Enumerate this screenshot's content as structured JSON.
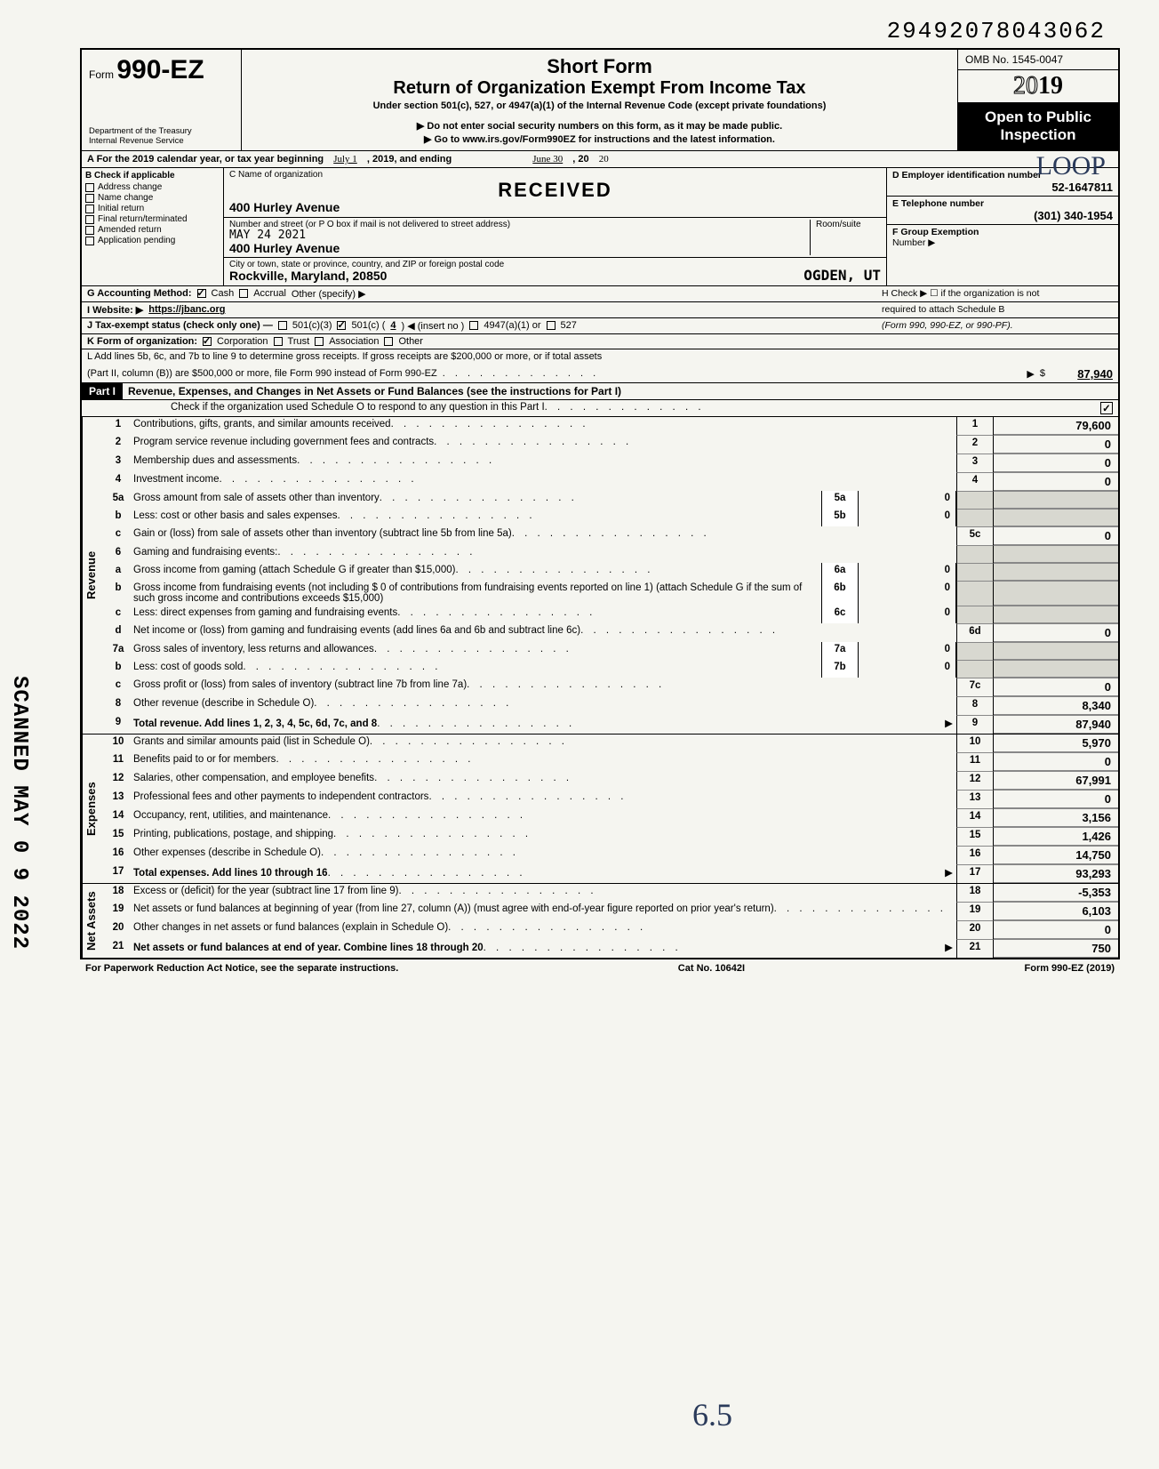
{
  "top_number": "29492078043062",
  "form": {
    "prefix": "Form",
    "number": "990-EZ",
    "dept1": "Department of the Treasury",
    "dept2": "Internal Revenue Service"
  },
  "header": {
    "short_form": "Short Form",
    "title": "Return of Organization Exempt From Income Tax",
    "under": "Under section 501(c), 527, or 4947(a)(1) of the Internal Revenue Code (except private foundations)",
    "arrow1": "▶ Do not enter social security numbers on this form, as it may be made public.",
    "arrow2": "▶ Go to www.irs.gov/Form990EZ for instructions and the latest information.",
    "omb": "OMB No. 1545-0047",
    "year_outline": "20",
    "year_solid": "19",
    "open1": "Open to Public",
    "open2": "Inspection"
  },
  "rowA": {
    "label": "A For the 2019 calendar year, or tax year beginning",
    "begin": "July 1",
    "mid": ", 2019, and ending",
    "end": "June 30",
    "tail": ", 20",
    "tail_year": "20"
  },
  "colB": {
    "title": "B Check if applicable",
    "items": [
      "Address change",
      "Name change",
      "Initial return",
      "Final return/terminated",
      "Amended return",
      "Application pending"
    ]
  },
  "colC": {
    "c_label": "C Name of organization",
    "received": "RECEIVED",
    "addr1": "400 Hurley Avenue",
    "street_label": "Number and street (or P O box if mail is not delivered to street address)",
    "date_stamp": "MAY 24 2021",
    "room": "Room/suite",
    "addr2": "400 Hurley Avenue",
    "city_label": "City or town, state or province, country, and ZIP or foreign postal code",
    "city": "Rockville, Maryland, 20850",
    "ogden": "OGDEN, UT"
  },
  "colDE": {
    "d_label": "D Employer identification number",
    "ein": "52-1647811",
    "e_label": "E Telephone number",
    "phone": "(301) 340-1954",
    "f_label": "F Group Exemption",
    "f_label2": "Number ▶"
  },
  "rowG": {
    "label": "G Accounting Method:",
    "cash": "Cash",
    "accrual": "Accrual",
    "other": "Other (specify) ▶",
    "h_label": "H Check ▶ ☐ if the organization is not",
    "h_label2": "required to attach Schedule B",
    "h_label3": "(Form 990, 990-EZ, or 990-PF)."
  },
  "rowI": {
    "label": "I Website: ▶",
    "val": "https://jbanc.org"
  },
  "rowJ": {
    "label": "J Tax-exempt status (check only one) —",
    "c3": "501(c)(3)",
    "c": "501(c) (",
    "c_num": "4",
    "c_tail": ") ◀ (insert no )",
    "a1": "4947(a)(1) or",
    "s527": "527"
  },
  "rowK": {
    "label": "K Form of organization:",
    "corp": "Corporation",
    "trust": "Trust",
    "assoc": "Association",
    "other": "Other"
  },
  "rowL": {
    "line1": "L Add lines 5b, 6c, and 7b to line 9 to determine gross receipts. If gross receipts are $200,000 or more, or if total assets",
    "line2": "(Part II, column (B)) are $500,000 or more, file Form 990 instead of Form 990-EZ",
    "arrow": "▶",
    "dollar": "$",
    "amount": "87,940"
  },
  "part1": {
    "badge": "Part I",
    "title": "Revenue, Expenses, and Changes in Net Assets or Fund Balances (see the instructions for Part I)",
    "scho": "Check if the organization used Schedule O to respond to any question in this Part I",
    "check": "✓"
  },
  "sections": {
    "revenue": "Revenue",
    "expenses": "Expenses",
    "netassets": "Net Assets"
  },
  "lines": [
    {
      "n": "1",
      "t": "Contributions, gifts, grants, and similar amounts received",
      "ref": "1",
      "v": "79,600"
    },
    {
      "n": "2",
      "t": "Program service revenue including government fees and contracts",
      "ref": "2",
      "v": "0"
    },
    {
      "n": "3",
      "t": "Membership dues and assessments",
      "ref": "3",
      "v": "0"
    },
    {
      "n": "4",
      "t": "Investment income",
      "ref": "4",
      "v": "0"
    },
    {
      "n": "5a",
      "t": "Gross amount from sale of assets other than inventory",
      "mid": "5a",
      "midv": "0"
    },
    {
      "n": "b",
      "t": "Less: cost or other basis and sales expenses",
      "mid": "5b",
      "midv": "0"
    },
    {
      "n": "c",
      "t": "Gain or (loss) from sale of assets other than inventory (subtract line 5b from line 5a)",
      "ref": "5c",
      "v": "0"
    },
    {
      "n": "6",
      "t": "Gaming and fundraising events:"
    },
    {
      "n": "a",
      "t": "Gross income from gaming (attach Schedule G if greater than $15,000)",
      "mid": "6a",
      "midv": "0"
    },
    {
      "n": "b",
      "t": "Gross income from fundraising events (not including $                    0 of contributions from fundraising events reported on line 1) (attach Schedule G if the sum of such gross income and contributions exceeds $15,000)",
      "mid": "6b",
      "midv": "0"
    },
    {
      "n": "c",
      "t": "Less: direct expenses from gaming and fundraising events",
      "mid": "6c",
      "midv": "0"
    },
    {
      "n": "d",
      "t": "Net income or (loss) from gaming and fundraising events (add lines 6a and 6b and subtract line 6c)",
      "ref": "6d",
      "v": "0"
    },
    {
      "n": "7a",
      "t": "Gross sales of inventory, less returns and allowances",
      "mid": "7a",
      "midv": "0"
    },
    {
      "n": "b",
      "t": "Less: cost of goods sold",
      "mid": "7b",
      "midv": "0"
    },
    {
      "n": "c",
      "t": "Gross profit or (loss) from sales of inventory (subtract line 7b from line 7a)",
      "ref": "7c",
      "v": "0"
    },
    {
      "n": "8",
      "t": "Other revenue (describe in Schedule O)",
      "ref": "8",
      "v": "8,340"
    },
    {
      "n": "9",
      "t": "Total revenue. Add lines 1, 2, 3, 4, 5c, 6d, 7c, and 8",
      "ref": "9",
      "v": "87,940",
      "arrow": "▶",
      "bold": true
    },
    {
      "n": "10",
      "t": "Grants and similar amounts paid (list in Schedule O)",
      "ref": "10",
      "v": "5,970"
    },
    {
      "n": "11",
      "t": "Benefits paid to or for members",
      "ref": "11",
      "v": "0"
    },
    {
      "n": "12",
      "t": "Salaries, other compensation, and employee benefits",
      "ref": "12",
      "v": "67,991"
    },
    {
      "n": "13",
      "t": "Professional fees and other payments to independent contractors",
      "ref": "13",
      "v": "0"
    },
    {
      "n": "14",
      "t": "Occupancy, rent, utilities, and maintenance",
      "ref": "14",
      "v": "3,156"
    },
    {
      "n": "15",
      "t": "Printing, publications, postage, and shipping",
      "ref": "15",
      "v": "1,426"
    },
    {
      "n": "16",
      "t": "Other expenses (describe in Schedule O)",
      "ref": "16",
      "v": "14,750"
    },
    {
      "n": "17",
      "t": "Total expenses. Add lines 10 through 16",
      "ref": "17",
      "v": "93,293",
      "arrow": "▶",
      "bold": true
    },
    {
      "n": "18",
      "t": "Excess or (deficit) for the year (subtract line 17 from line 9)",
      "ref": "18",
      "v": "-5,353"
    },
    {
      "n": "19",
      "t": "Net assets or fund balances at beginning of year (from line 27, column (A)) (must agree with end-of-year figure reported on prior year's return)",
      "ref": "19",
      "v": "6,103"
    },
    {
      "n": "20",
      "t": "Other changes in net assets or fund balances (explain in Schedule O)",
      "ref": "20",
      "v": "0"
    },
    {
      "n": "21",
      "t": "Net assets or fund balances at end of year. Combine lines 18 through 20",
      "ref": "21",
      "v": "750",
      "arrow": "▶",
      "bold": true
    }
  ],
  "footer": {
    "left": "For Paperwork Reduction Act Notice, see the separate instructions.",
    "mid": "Cat No. 10642I",
    "right": "Form 990-EZ (2019)"
  },
  "side_scan": "SCANNED MAY 0 9 2022",
  "handwriting": "6.5",
  "handwriting2": "LOOP"
}
